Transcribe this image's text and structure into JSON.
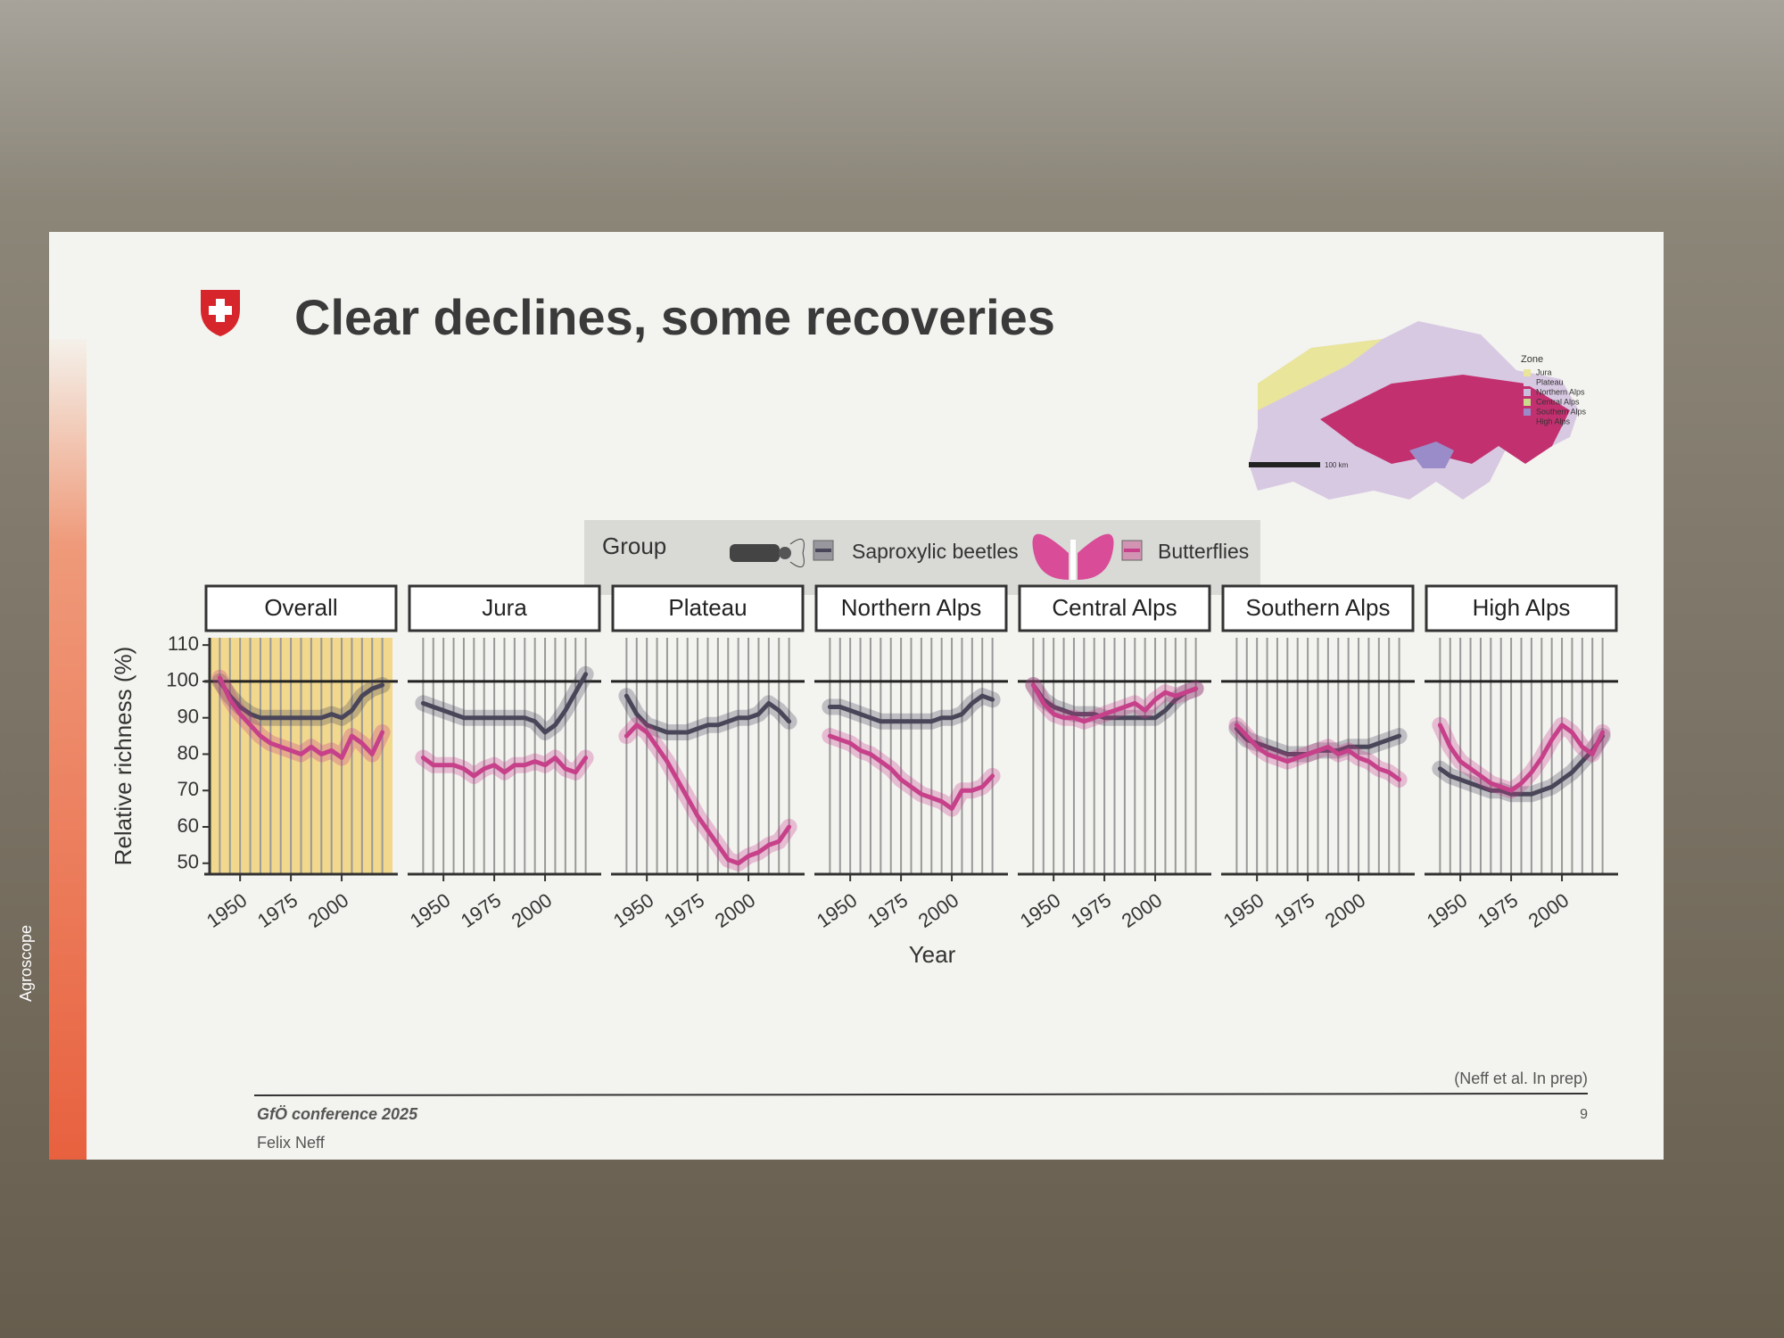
{
  "slide": {
    "credit": "(Neff et al. In prep)",
    "conference": "GfÖ conference 2025",
    "author": "Felix Neff",
    "page": "9",
    "brand": "Agroscope",
    "map": {
      "legend_title": "Zone",
      "scale": "100 km",
      "zones": [
        {
          "name": "Jura",
          "color": "#e9e59a"
        },
        {
          "name": "Plateau",
          "color": "#d8c9e2"
        },
        {
          "name": "Northern Alps",
          "color": "#c9bfdc"
        },
        {
          "name": "Central Alps",
          "color": "#c9dc8c"
        },
        {
          "name": "Southern Alps",
          "color": "#9a8cc9"
        },
        {
          "name": "High Alps",
          "color": "#c2306f"
        }
      ]
    }
  },
  "chart_data": {
    "type": "line",
    "title": "Clear declines, some recoveries",
    "xlabel": "Year",
    "ylabel": "Relative richness (%)",
    "legend_title": "Group",
    "groups": [
      {
        "name": "Saproxylic beetles",
        "color": "#4a4659"
      },
      {
        "name": "Butterflies",
        "color": "#c7408a"
      }
    ],
    "x": [
      1940,
      1945,
      1950,
      1955,
      1960,
      1965,
      1970,
      1975,
      1980,
      1985,
      1990,
      1995,
      2000,
      2005,
      2010,
      2015,
      2020
    ],
    "xlim": [
      1935,
      2025
    ],
    "xticks": [
      1950,
      1975,
      2000
    ],
    "ylim": [
      47,
      112
    ],
    "yticks": [
      50,
      60,
      70,
      80,
      90,
      100,
      110
    ],
    "reference_line": 100,
    "panels": [
      {
        "title": "Overall",
        "highlight": "#f2d88c",
        "values": [
          [
            100,
            96,
            93,
            91,
            90,
            90,
            90,
            90,
            90,
            90,
            90,
            91,
            90,
            92,
            96,
            98,
            99
          ],
          [
            101,
            95,
            91,
            88,
            85,
            83,
            82,
            81,
            80,
            82,
            80,
            81,
            79,
            85,
            83,
            80,
            86
          ]
        ]
      },
      {
        "title": "Jura",
        "values": [
          [
            94,
            93,
            92,
            91,
            90,
            90,
            90,
            90,
            90,
            90,
            90,
            89,
            86,
            88,
            92,
            97,
            102
          ],
          [
            79,
            77,
            77,
            77,
            76,
            74,
            76,
            77,
            75,
            77,
            77,
            78,
            77,
            79,
            76,
            75,
            79
          ]
        ]
      },
      {
        "title": "Plateau",
        "values": [
          [
            96,
            91,
            88,
            87,
            86,
            86,
            86,
            87,
            88,
            88,
            89,
            90,
            90,
            91,
            94,
            92,
            89
          ],
          [
            85,
            88,
            86,
            82,
            78,
            73,
            68,
            63,
            59,
            55,
            51,
            50,
            52,
            53,
            55,
            56,
            60
          ]
        ]
      },
      {
        "title": "Northern Alps",
        "values": [
          [
            93,
            93,
            92,
            91,
            90,
            89,
            89,
            89,
            89,
            89,
            89,
            90,
            90,
            91,
            94,
            96,
            95
          ],
          [
            85,
            84,
            83,
            81,
            80,
            78,
            76,
            73,
            71,
            69,
            68,
            67,
            65,
            70,
            70,
            71,
            74
          ]
        ]
      },
      {
        "title": "Central Alps",
        "values": [
          [
            99,
            95,
            93,
            92,
            91,
            91,
            91,
            90,
            90,
            90,
            90,
            90,
            90,
            92,
            95,
            97,
            98
          ],
          [
            99,
            94,
            91,
            90,
            90,
            89,
            90,
            91,
            92,
            93,
            94,
            92,
            95,
            97,
            96,
            97,
            98
          ]
        ]
      },
      {
        "title": "Southern Alps",
        "values": [
          [
            87,
            84,
            83,
            82,
            81,
            80,
            80,
            80,
            81,
            81,
            81,
            82,
            82,
            82,
            83,
            84,
            85
          ],
          [
            88,
            85,
            82,
            80,
            79,
            78,
            79,
            80,
            81,
            82,
            80,
            81,
            79,
            78,
            76,
            75,
            73
          ]
        ]
      },
      {
        "title": "High Alps",
        "values": [
          [
            76,
            74,
            73,
            72,
            71,
            70,
            70,
            69,
            69,
            69,
            70,
            71,
            73,
            75,
            78,
            81,
            85
          ],
          [
            88,
            82,
            78,
            76,
            74,
            72,
            71,
            70,
            72,
            75,
            79,
            84,
            88,
            86,
            82,
            80,
            86
          ]
        ]
      }
    ]
  }
}
